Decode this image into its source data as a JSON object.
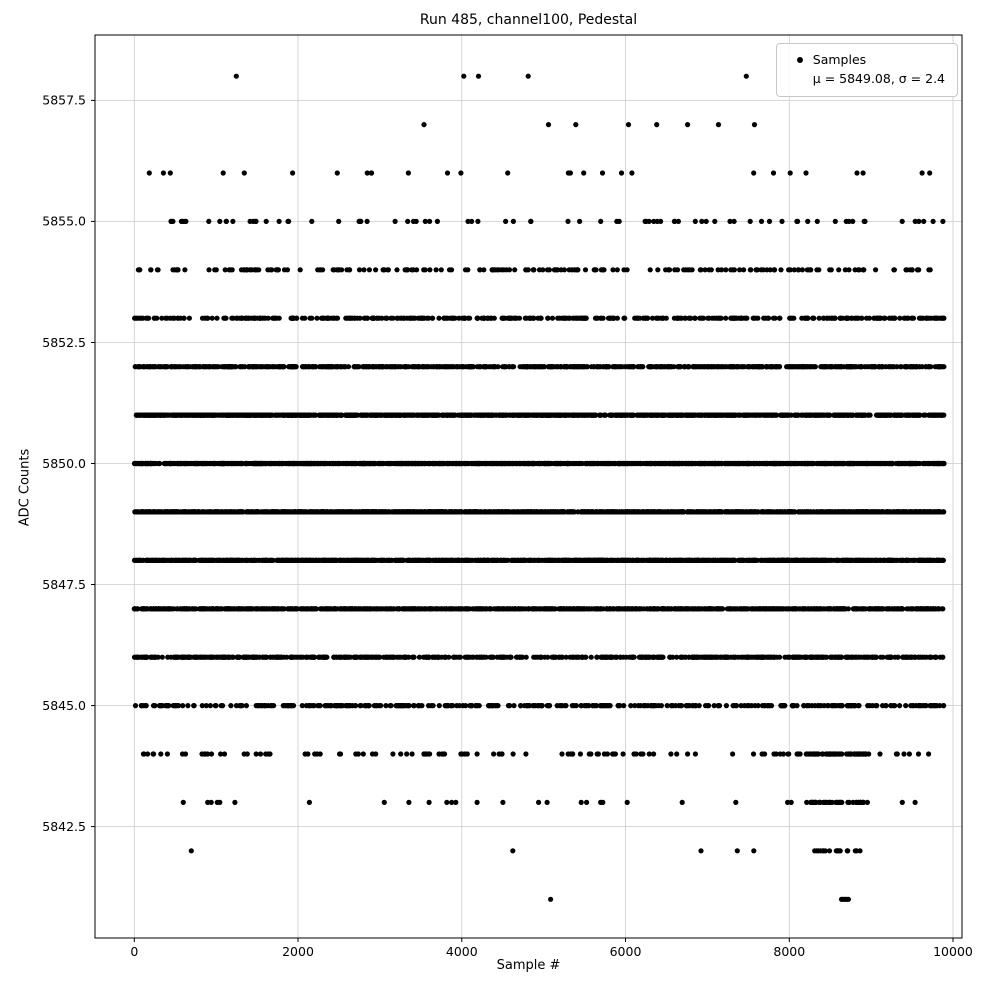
{
  "figure": {
    "background": "#ffffff"
  },
  "chart_data": {
    "type": "scatter",
    "title": "Run 485, channel100, Pedestal",
    "xlabel": "Sample #",
    "ylabel": "ADC Counts",
    "xlim": [
      -480,
      10110
    ],
    "ylim": [
      5840.2,
      5858.85
    ],
    "x_ticks": [
      0,
      2000,
      4000,
      6000,
      8000,
      10000
    ],
    "y_ticks": [
      5842.5,
      5845.0,
      5847.5,
      5850.0,
      5852.5,
      5855.0,
      5857.5
    ],
    "grid": true,
    "grid_color": "#cccccc",
    "marker_color": "#000000",
    "marker_radius": 2.6,
    "legend": {
      "position": "top-right",
      "samples_label": "Samples",
      "stats_label": "μ = 5849.08, σ = 2.4"
    },
    "stats": {
      "mu": 5849.08,
      "sigma": 2.4
    },
    "x_range_data": [
      0,
      9890
    ],
    "adc_level_counts": [
      {
        "adc": 5858,
        "count": 5
      },
      {
        "adc": 5857,
        "count": 8
      },
      {
        "adc": 5856,
        "count": 28
      },
      {
        "adc": 5855,
        "count": 80
      },
      {
        "adc": 5854,
        "count": 205
      },
      {
        "adc": 5853,
        "count": 440
      },
      {
        "adc": 5852,
        "count": 790
      },
      {
        "adc": 5851,
        "count": 1200
      },
      {
        "adc": 5850,
        "count": 1530
      },
      {
        "adc": 5849,
        "count": 1650
      },
      {
        "adc": 5848,
        "count": 1490
      },
      {
        "adc": 5847,
        "count": 1130
      },
      {
        "adc": 5846,
        "count": 720
      },
      {
        "adc": 5845,
        "count": 390
      },
      {
        "adc": 5844,
        "count": 175,
        "cluster": {
          "range": [
            8200,
            8950
          ],
          "frac": 0.35
        }
      },
      {
        "adc": 5843,
        "count": 70,
        "cluster": {
          "range": [
            8200,
            8950
          ],
          "frac": 0.5
        }
      },
      {
        "adc": 5842,
        "count": 24,
        "cluster": {
          "range": [
            8300,
            8900
          ],
          "frac": 0.6
        }
      },
      {
        "adc": 5841,
        "count": 7,
        "cluster": {
          "range": [
            8250,
            8900
          ],
          "frac": 0.7
        }
      }
    ]
  }
}
